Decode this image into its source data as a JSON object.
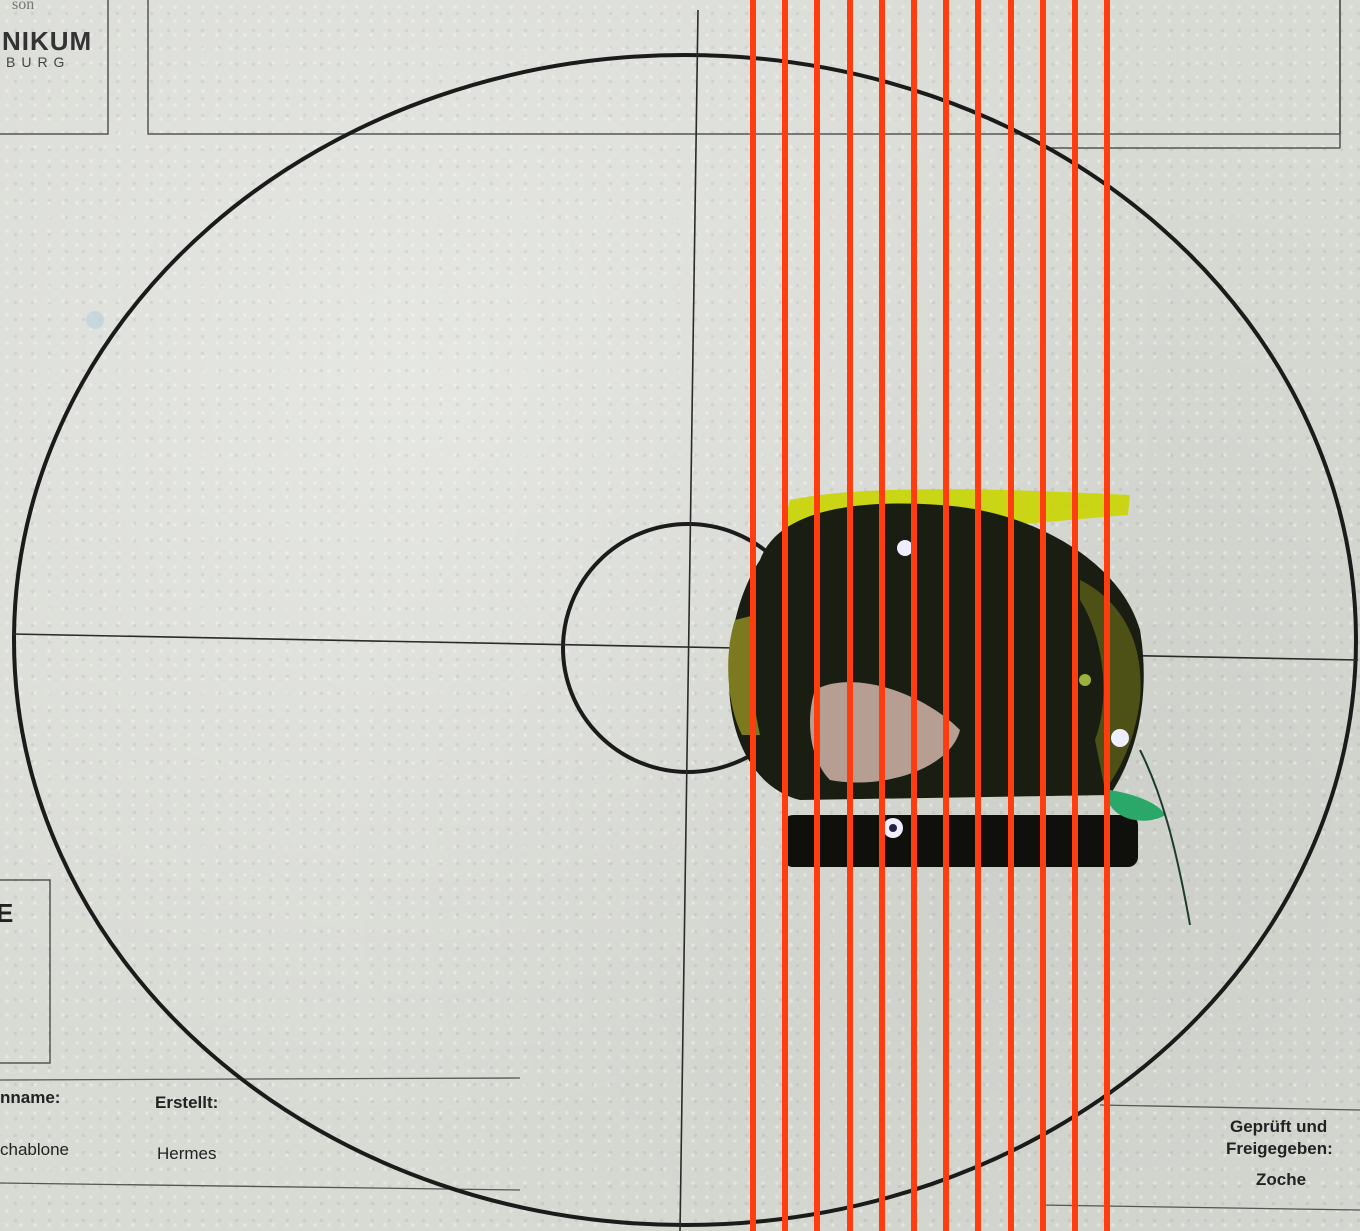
{
  "logo": {
    "top": "son",
    "main": "NIKUM",
    "sub": "BURG"
  },
  "form": {
    "name_label": "nname:",
    "name_value": "chablone",
    "created_label": "Erstellt:",
    "created_value": "Hermes",
    "approved_label_1": "Geprüft und",
    "approved_label_2": "Freigegeben:",
    "approved_value": "Zoche",
    "side_mark": "E"
  },
  "colors": {
    "stripe": "#ff3d0f",
    "sample_yellow": "#c8d500",
    "sample_green": "#2aa86a",
    "target_line": "#1b1b1b"
  },
  "stripe_count": 12
}
